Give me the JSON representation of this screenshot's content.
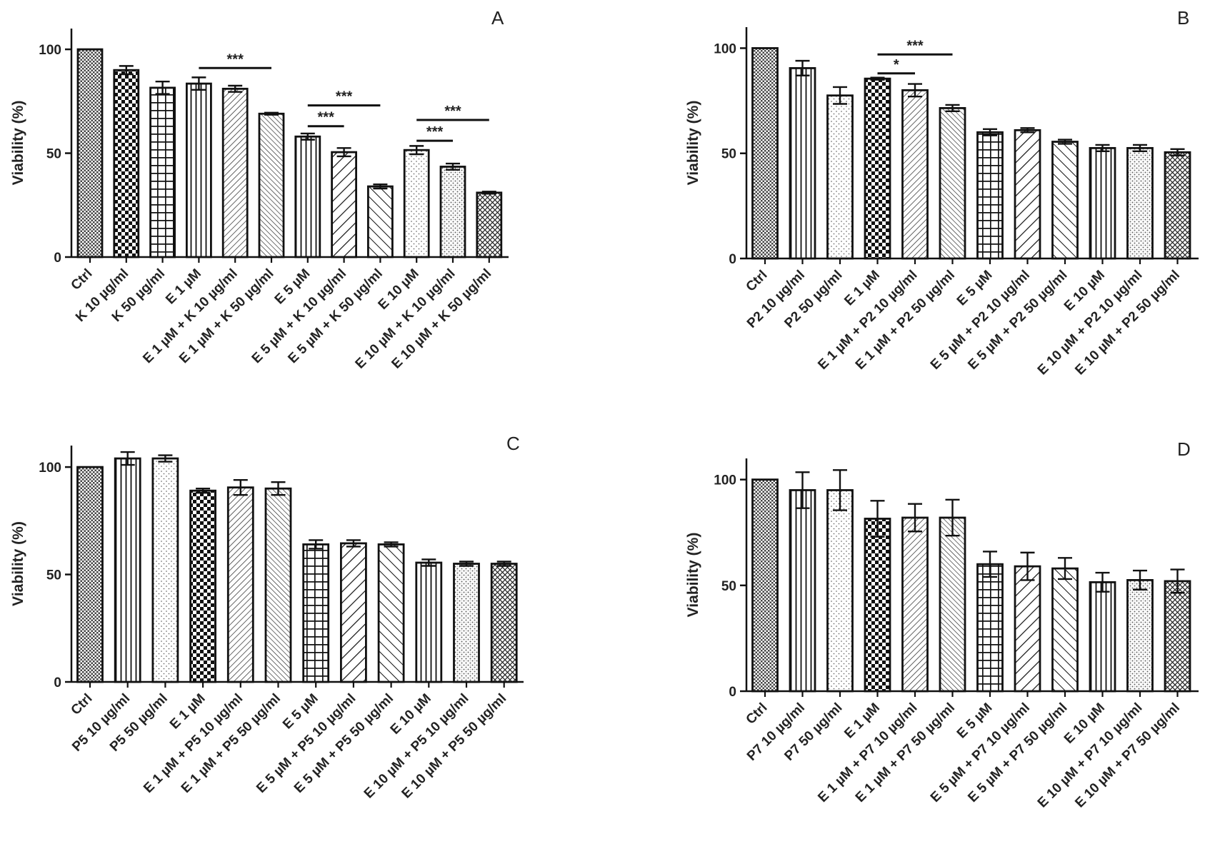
{
  "chart_data": [
    {
      "panel": "A",
      "type": "bar",
      "ylabel": "Viability (%)",
      "ylim": [
        0,
        110
      ],
      "yticks": [
        0,
        50,
        100
      ],
      "categories": [
        "Ctrl",
        "K 10 µg/ml",
        "K 50 µg/ml",
        "E 1 µM",
        "E 1 µM + K 10 µg/ml",
        "E 1 µM + K 50 µg/ml",
        "E 5 µM",
        "E 5 µM + K 10 µg/ml",
        "E 5 µM + K 50 µg/ml",
        "E 10 µM",
        "E 10 µM + K 10 µg/ml",
        "E 10 µM + K 50 µg/ml"
      ],
      "values": [
        100,
        90,
        81.5,
        83.5,
        81,
        69,
        58,
        50.5,
        34,
        51.5,
        43.5,
        31
      ],
      "errors": [
        0,
        2,
        3,
        3,
        1.5,
        0.5,
        1.5,
        2,
        1,
        2,
        1.5,
        0.5
      ],
      "patterns": [
        "smallcheck",
        "bigcheck",
        "grid",
        "vstripe",
        "dfine",
        "bfine",
        "vstripe",
        "dcoarse",
        "bcoarse",
        "dots",
        "fuzzy",
        "diamond"
      ],
      "significance": [
        {
          "from": 3,
          "to": 5,
          "label": "***",
          "y": 91
        },
        {
          "from": 6,
          "to": 7,
          "label": "***",
          "y": 63
        },
        {
          "from": 6,
          "to": 8,
          "label": "***",
          "y": 73
        },
        {
          "from": 9,
          "to": 10,
          "label": "***",
          "y": 56
        },
        {
          "from": 9,
          "to": 11,
          "label": "***",
          "y": 66
        }
      ]
    },
    {
      "panel": "B",
      "type": "bar",
      "ylabel": "Viability (%)",
      "ylim": [
        0,
        110
      ],
      "yticks": [
        0,
        50,
        100
      ],
      "categories": [
        "Ctrl",
        "P2 10 µg/ml",
        "P2 50 µg/ml",
        "E 1 µM",
        "E 1 µM + P2 10 µg/ml",
        "E 1 µM + P2 50 µg/ml",
        "E 5 µM",
        "E 5 µM + P2 10 µg/ml",
        "E 5 µM + P2 50 µg/ml",
        "E 10 µM",
        "E 10 µM + P2 10 µg/ml",
        "E 10 µM + P2 50 µg/ml"
      ],
      "values": [
        100,
        90.5,
        77.5,
        85.5,
        80,
        71.5,
        60,
        61,
        55.5,
        52.5,
        52.5,
        50.5
      ],
      "errors": [
        0,
        3.5,
        4,
        0.5,
        3,
        1.5,
        1.5,
        1,
        1,
        1.5,
        1.5,
        1.5
      ],
      "patterns": [
        "smallcheck",
        "vstripe",
        "dots",
        "bigcheck",
        "dfine",
        "bfine",
        "grid",
        "dcoarse",
        "bcoarse",
        "vstripe",
        "fuzzy",
        "diamond"
      ],
      "significance": [
        {
          "from": 3,
          "to": 4,
          "label": "*",
          "y": 88
        },
        {
          "from": 3,
          "to": 5,
          "label": "***",
          "y": 97
        }
      ]
    },
    {
      "panel": "C",
      "type": "bar",
      "ylabel": "Viability (%)",
      "ylim": [
        0,
        110
      ],
      "yticks": [
        0,
        50,
        100
      ],
      "categories": [
        "Ctrl",
        "P5 10 µg/ml",
        "P5 50 µg/ml",
        "E 1 µM",
        "E 1 µM + P5 10 µg/ml",
        "E 1 µM + P5 50 µg/ml",
        "E 5 µM",
        "E 5 µM + P5 10 µg/ml",
        "E 5 µM + P5 50 µg/ml",
        "E 10 µM",
        "E 10 µM + P5 10 µg/ml",
        "E 10 µM + P5 50 µg/ml"
      ],
      "values": [
        100,
        104,
        104,
        89,
        90.5,
        90,
        64,
        64.5,
        64,
        55.5,
        55,
        55
      ],
      "errors": [
        0,
        3,
        1.5,
        1,
        3.5,
        3,
        2,
        1.5,
        1,
        1.5,
        1,
        1
      ],
      "patterns": [
        "smallcheck",
        "vstripe",
        "dots",
        "bigcheck",
        "dfine",
        "bfine",
        "grid",
        "dcoarse",
        "bcoarse",
        "vstripe",
        "fuzzy",
        "diamond"
      ],
      "significance": []
    },
    {
      "panel": "D",
      "type": "bar",
      "ylabel": "Viability (%)",
      "ylim": [
        0,
        110
      ],
      "yticks": [
        0,
        50,
        100
      ],
      "categories": [
        "Ctrl",
        "P7 10 µg/ml",
        "P7 50 µg/ml",
        "E 1 µM",
        "E 1 µM + P7 10 µg/ml",
        "E 1 µM + P7 50 µg/ml",
        "E 5 µM",
        "E 5 µM + P7 10 µg/ml",
        "E 5 µM + P7 50 µg/ml",
        "E 10 µM",
        "E 10 µM + P7 10 µg/ml",
        "E 10 µM + P7 50 µg/ml"
      ],
      "values": [
        100,
        95,
        95,
        81.5,
        82,
        82,
        60,
        59,
        58,
        51.5,
        52.5,
        52
      ],
      "errors": [
        0,
        8.5,
        9.5,
        8.5,
        6.5,
        8.5,
        6,
        6.5,
        5,
        4.5,
        4.5,
        5.5
      ],
      "patterns": [
        "smallcheck",
        "vstripe",
        "dots",
        "bigcheck",
        "dfine",
        "bfine",
        "grid",
        "dcoarse",
        "bcoarse",
        "vstripe",
        "fuzzy",
        "diamond"
      ],
      "significance": []
    }
  ]
}
